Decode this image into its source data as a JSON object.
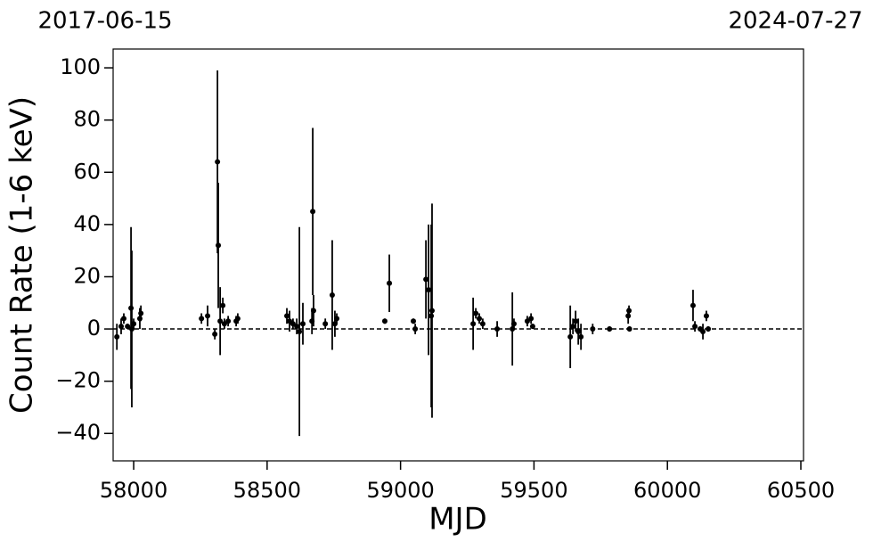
{
  "chart_data": {
    "type": "errorbar",
    "xlabel": "MJD",
    "ylabel": "Count Rate (1-6 keV)",
    "date_labels": [
      "2017-06-15",
      "2024-07-27"
    ],
    "xlim": [
      57923,
      60510
    ],
    "ylim": [
      -50.5,
      107.2
    ],
    "xticks": [
      58000,
      58500,
      59000,
      59500,
      60000,
      60500
    ],
    "yticks": [
      {
        "value": -40,
        "label": "−40"
      },
      {
        "value": -20,
        "label": "−20"
      },
      0,
      20,
      40,
      60,
      80,
      100
    ],
    "hline": 0,
    "color": "#000000",
    "x": [
      57937,
      57953,
      57963,
      57977,
      57990,
      57993,
      58000,
      58023,
      58027,
      58254,
      58277,
      58304,
      58314,
      58317,
      58324,
      58334,
      58340,
      58354,
      58384,
      58390,
      58574,
      58584,
      58597,
      58611,
      58621,
      58634,
      58668,
      58671,
      58674,
      58718,
      58744,
      58754,
      58761,
      58941,
      58958,
      59048,
      59055,
      59095,
      59105,
      59115,
      59118,
      59272,
      59282,
      59295,
      59308,
      59362,
      59419,
      59425,
      59475,
      59489,
      59495,
      59636,
      59646,
      59656,
      59666,
      59676,
      59720,
      59783,
      59853,
      59856,
      59858,
      60096,
      60103,
      60123,
      60133,
      60146,
      60153
    ],
    "values": [
      -3,
      1,
      4,
      1,
      8,
      0,
      2,
      4,
      6,
      4,
      5,
      -2,
      64,
      32,
      3,
      9,
      2,
      3,
      3,
      4,
      5,
      3,
      2,
      1,
      -1,
      2,
      3,
      45,
      7,
      2,
      13,
      2,
      4,
      3,
      17.5,
      3,
      0,
      19,
      15,
      5,
      7,
      2,
      6,
      4,
      2,
      0,
      0,
      2,
      3,
      4,
      1,
      -3,
      1,
      3,
      -1,
      -3,
      0,
      0,
      5,
      7,
      0,
      9,
      1,
      0,
      -1,
      5,
      0
    ],
    "errors": [
      5,
      3,
      2,
      1,
      31,
      30,
      2,
      4,
      3,
      2,
      4,
      2,
      35,
      24,
      13,
      3,
      2,
      2,
      2,
      2,
      3,
      4,
      2,
      3,
      40,
      8,
      5,
      32,
      6,
      2,
      21,
      5,
      2,
      1,
      11,
      1,
      2,
      15,
      25,
      35,
      41,
      10,
      2,
      2,
      2,
      3,
      14,
      2,
      2,
      2,
      1,
      12,
      3,
      4,
      5,
      5,
      2,
      1,
      3,
      2,
      1,
      6,
      2,
      1,
      3,
      2,
      1
    ]
  }
}
